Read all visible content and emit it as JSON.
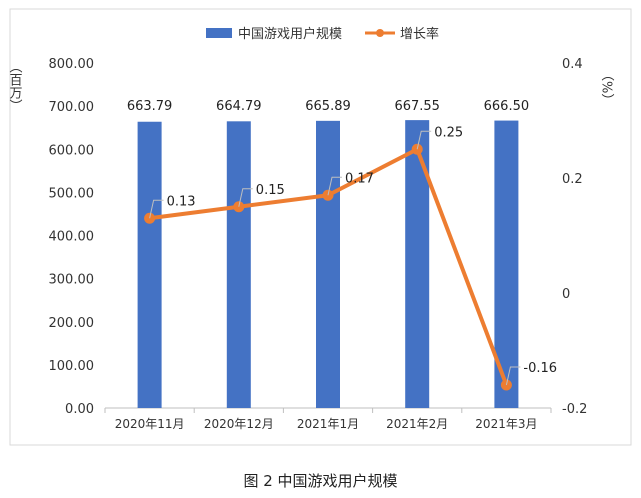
{
  "caption": "图 2 中国游戏用户规模",
  "chart_data": {
    "type": "bar+line",
    "categories": [
      "2020年11月",
      "2020年12月",
      "2021年1月",
      "2021年2月",
      "2021年3月"
    ],
    "series": [
      {
        "name": "中国游戏用户规模",
        "type": "bar",
        "axis": "left",
        "values": [
          663.79,
          664.79,
          665.89,
          667.55,
          666.5
        ],
        "labels": [
          "663.79",
          "664.79",
          "665.89",
          "667.55",
          "666.50"
        ],
        "color": "#4472C4"
      },
      {
        "name": "增长率",
        "type": "line",
        "axis": "right",
        "values": [
          0.13,
          0.15,
          0.17,
          0.25,
          -0.16
        ],
        "labels": [
          "0.13",
          "0.15",
          "0.17",
          "0.25",
          "-0.16"
        ],
        "color": "#ED7D31"
      }
    ],
    "y_left": {
      "label": "（百万）",
      "ylim": [
        0,
        800
      ],
      "ticks": [
        "800.00",
        "700.00",
        "600.00",
        "500.00",
        "400.00",
        "300.00",
        "200.00",
        "100.00",
        "0.00"
      ]
    },
    "y_right": {
      "label": "（%）",
      "ylim": [
        -0.2,
        0.4
      ],
      "ticks": [
        "0.4",
        "0.2",
        "0",
        "-0.2"
      ]
    },
    "grid": false,
    "legend_position": "top-center"
  }
}
